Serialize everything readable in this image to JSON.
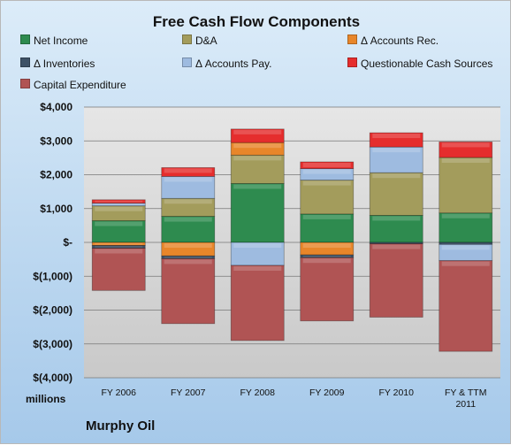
{
  "chart_data": {
    "type": "bar",
    "stacked": true,
    "title": "Free Cash Flow Components",
    "units_label": "millions",
    "company": "Murphy Oil",
    "categories": [
      "FY 2006",
      "FY 2007",
      "FY 2008",
      "FY 2009",
      "FY 2010",
      "FY & TTM 2011"
    ],
    "ylim": [
      -4000,
      4000
    ],
    "yticks": [
      {
        "value": 4000,
        "label": "$4,000"
      },
      {
        "value": 3000,
        "label": "$3,000"
      },
      {
        "value": 2000,
        "label": "$2,000"
      },
      {
        "value": 1000,
        "label": "$1,000"
      },
      {
        "value": 0,
        "label": "$-"
      },
      {
        "value": -1000,
        "label": "$(1,000)"
      },
      {
        "value": -2000,
        "label": "$(2,000)"
      },
      {
        "value": -3000,
        "label": "$(3,000)"
      },
      {
        "value": -4000,
        "label": "$(4,000)"
      }
    ],
    "legend_position": "top",
    "grid": true,
    "series": [
      {
        "name": "Net Income",
        "color": "#2e8b4f",
        "values": [
          640,
          770,
          1740,
          840,
          800,
          870
        ]
      },
      {
        "name": "D&A",
        "color": "#a39c5c",
        "values": [
          440,
          530,
          840,
          1000,
          1260,
          1640
        ]
      },
      {
        "name": "Δ Accounts Rec.",
        "color": "#e8862a",
        "values": [
          -90,
          -400,
          370,
          -370,
          0,
          0
        ]
      },
      {
        "name": "Δ Inventories",
        "color": "#3d5166",
        "values": [
          -80,
          -80,
          0,
          -80,
          -40,
          -60
        ]
      },
      {
        "name": "Δ Accounts Pay.",
        "color": "#9ebbe0",
        "values": [
          80,
          650,
          -680,
          340,
          760,
          0
        ]
      },
      {
        "name": "Questionable Cash Sources",
        "color": "#e52d2d",
        "values": [
          100,
          260,
          400,
          200,
          420,
          460
        ]
      },
      {
        "name": "Capital Expenditure",
        "color": "#b05454",
        "values": [
          -1250,
          -1920,
          -2220,
          -1870,
          -2170,
          -2680
        ]
      }
    ],
    "stack_adjustments": [
      {
        "category": "FY 2011",
        "note": "Δ Accounts Pay. negative segment"
      }
    ],
    "extra_negative": [
      {
        "series": "Δ Accounts Pay.",
        "category_index": 5,
        "value": -480
      }
    ]
  }
}
